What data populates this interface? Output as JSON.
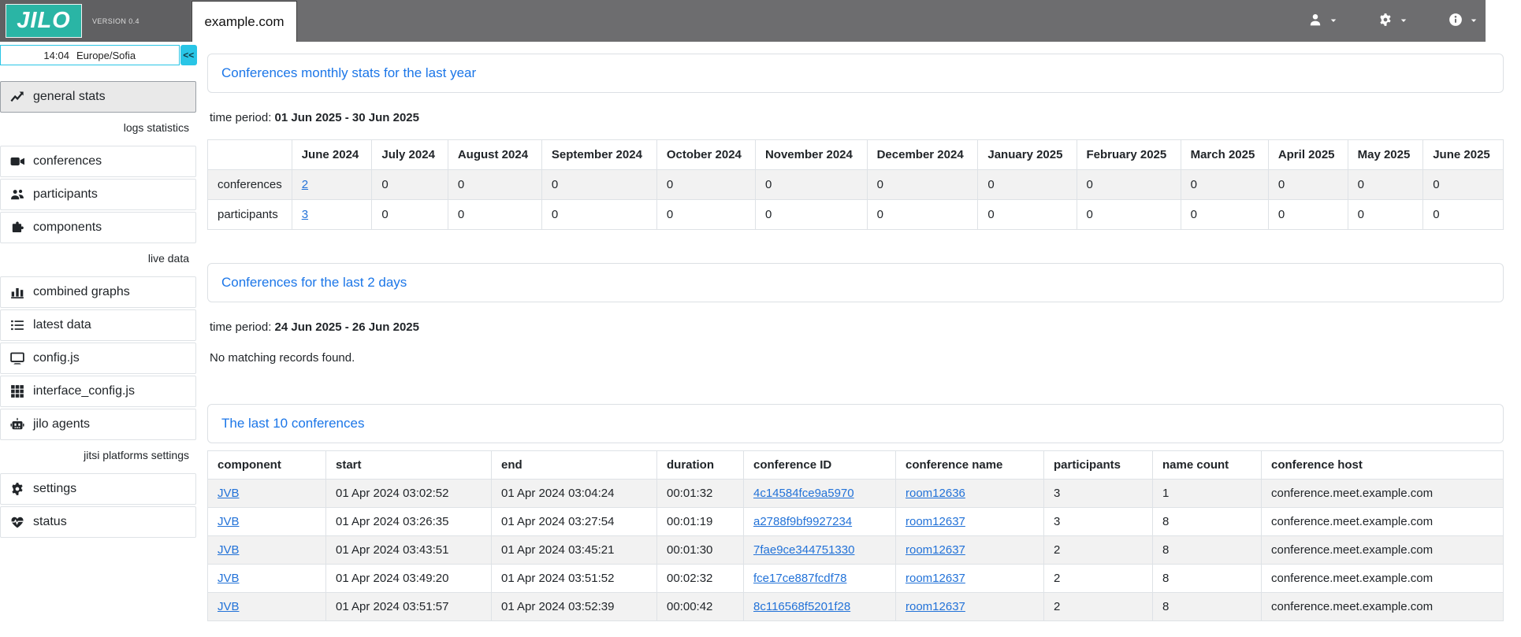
{
  "header": {
    "logo_text": "JILO",
    "version": "VERSION 0.4",
    "site_tab": "example.com",
    "nav_menus": [
      {
        "name": "user-menu",
        "icon": "user-icon"
      },
      {
        "name": "settings-menu",
        "icon": "gear-icon"
      },
      {
        "name": "info-menu",
        "icon": "info-icon"
      }
    ]
  },
  "sidebar": {
    "clock": {
      "time": "14:04",
      "timezone": "Europe/Sofia",
      "collapse_label": "<<"
    },
    "sections": [
      {
        "label": null,
        "items": [
          {
            "icon": "chart-line-icon",
            "label": "general stats",
            "active": true
          }
        ]
      },
      {
        "label": "logs statistics",
        "items": [
          {
            "icon": "video-icon",
            "label": "conferences"
          },
          {
            "icon": "users-icon",
            "label": "participants"
          },
          {
            "icon": "puzzle-icon",
            "label": "components"
          }
        ]
      },
      {
        "label": "live data",
        "items": [
          {
            "icon": "bar-chart-icon",
            "label": "combined graphs"
          },
          {
            "icon": "list-icon",
            "label": "latest data"
          },
          {
            "icon": "desktop-icon",
            "label": "config.js"
          },
          {
            "icon": "grid-icon",
            "label": "interface_config.js"
          },
          {
            "icon": "robot-icon",
            "label": "jilo agents"
          }
        ]
      },
      {
        "label": "jitsi platforms settings",
        "items": [
          {
            "icon": "gear-icon",
            "label": "settings"
          },
          {
            "icon": "heart-pulse-icon",
            "label": "status"
          }
        ]
      }
    ]
  },
  "main": {
    "monthly": {
      "title": "Conferences monthly stats for the last year",
      "period_label": "time period:",
      "period": "01 Jun 2025 - 30 Jun 2025",
      "table": {
        "link_cols": [
          1
        ],
        "columns": [
          "",
          "June 2024",
          "July 2024",
          "August 2024",
          "September 2024",
          "October 2024",
          "November 2024",
          "December 2024",
          "January 2025",
          "February 2025",
          "March 2025",
          "April 2025",
          "May 2025",
          "June 2025"
        ],
        "rows": [
          [
            "conferences",
            "2",
            "0",
            "0",
            "0",
            "0",
            "0",
            "0",
            "0",
            "0",
            "0",
            "0",
            "0",
            "0"
          ],
          [
            "participants",
            "3",
            "0",
            "0",
            "0",
            "0",
            "0",
            "0",
            "0",
            "0",
            "0",
            "0",
            "0",
            "0"
          ]
        ]
      }
    },
    "recent": {
      "title": "Conferences for the last 2 days",
      "period_label": "time period:",
      "period": "24 Jun 2025 - 26 Jun 2025",
      "empty_message": "No matching records found."
    },
    "last10": {
      "title": "The last 10 conferences",
      "table": {
        "link_cols": [
          0,
          4,
          5
        ],
        "columns": [
          "component",
          "start",
          "end",
          "duration",
          "conference ID",
          "conference name",
          "participants",
          "name count",
          "conference host"
        ],
        "rows": [
          [
            "JVB",
            "01 Apr 2024 03:02:52",
            "01 Apr 2024 03:04:24",
            "00:01:32",
            "4c14584fce9a5970",
            "room12636",
            "3",
            "1",
            "conference.meet.example.com"
          ],
          [
            "JVB",
            "01 Apr 2024 03:26:35",
            "01 Apr 2024 03:27:54",
            "00:01:19",
            "a2788f9bf9927234",
            "room12637",
            "3",
            "8",
            "conference.meet.example.com"
          ],
          [
            "JVB",
            "01 Apr 2024 03:43:51",
            "01 Apr 2024 03:45:21",
            "00:01:30",
            "7fae9ce344751330",
            "room12637",
            "2",
            "8",
            "conference.meet.example.com"
          ],
          [
            "JVB",
            "01 Apr 2024 03:49:20",
            "01 Apr 2024 03:51:52",
            "00:02:32",
            "fce17ce887fcdf78",
            "room12637",
            "2",
            "8",
            "conference.meet.example.com"
          ],
          [
            "JVB",
            "01 Apr 2024 03:51:57",
            "01 Apr 2024 03:52:39",
            "00:00:42",
            "8c116568f5201f28",
            "room12637",
            "2",
            "8",
            "conference.meet.example.com"
          ]
        ]
      }
    }
  },
  "colors": {
    "brand_teal": "#2ab5a5",
    "accent_cyan": "#29c5e6",
    "topbar_gray": "#6d6d6f",
    "title_blue": "#1b76e8",
    "link_blue": "#2272d8",
    "stripe_gray": "#f2f2f2"
  }
}
